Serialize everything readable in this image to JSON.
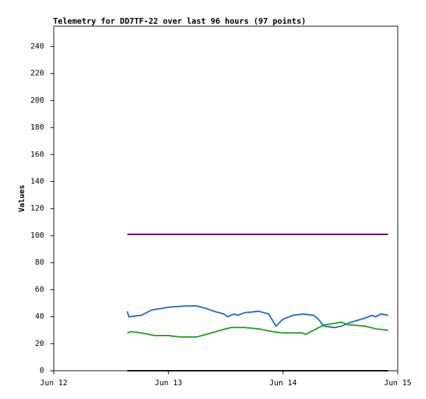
{
  "chart_data": {
    "type": "line",
    "title": "Telemetry for DD7TF-22 over last 96 hours (97 points)",
    "ylabel": "Values",
    "xlim": [
      0,
      72
    ],
    "xticks": [
      {
        "value": 0,
        "label": "Jun 12"
      },
      {
        "value": 24,
        "label": "Jun 13"
      },
      {
        "value": 48,
        "label": "Jun 14"
      },
      {
        "value": 72,
        "label": "Jun 15"
      }
    ],
    "ylim": [
      0,
      255
    ],
    "yticks": [
      0,
      20,
      40,
      60,
      80,
      100,
      120,
      140,
      160,
      180,
      200,
      220,
      240
    ],
    "grid": false,
    "series": [
      {
        "color": "#660066",
        "x": [
          15.4,
          70.0
        ],
        "values": [
          101,
          101
        ]
      },
      {
        "color": "#1f6cc0",
        "x": [
          15.4,
          15.7,
          18.3,
          20.5,
          24.1,
          27.7,
          29.9,
          32.0,
          33.5,
          35.6,
          36.4,
          37.8,
          38.5,
          40.0,
          42.9,
          45.0,
          46.5,
          47.9,
          50.1,
          52.2,
          54.4,
          55.4,
          56.6,
          58.7,
          60.2,
          62.3,
          65.2,
          66.6,
          67.4,
          68.5,
          70.0
        ],
        "values": [
          44,
          40,
          41,
          45,
          47,
          48,
          48,
          46,
          44,
          42,
          40,
          42,
          41,
          43,
          44,
          42,
          33,
          38,
          41,
          42,
          41,
          38,
          33,
          32,
          33,
          36,
          39,
          41,
          40,
          42,
          41
        ]
      },
      {
        "color": "#1ea01e",
        "x": [
          15.4,
          16.2,
          18.3,
          21.2,
          24.1,
          26.3,
          29.9,
          32.0,
          34.9,
          37.1,
          40.0,
          42.9,
          45.7,
          47.9,
          52.0,
          52.7,
          54.4,
          56.6,
          58.7,
          60.2,
          61.6,
          65.2,
          67.4,
          70.0
        ],
        "values": [
          28,
          29,
          28,
          26,
          26,
          25,
          25,
          27,
          30,
          32,
          32,
          31,
          29,
          28,
          28,
          27,
          30,
          34,
          35,
          36,
          34,
          33,
          31,
          30
        ]
      },
      {
        "color": "#000000",
        "x": [
          15.4,
          70.0
        ],
        "values": [
          0,
          0
        ]
      }
    ]
  }
}
